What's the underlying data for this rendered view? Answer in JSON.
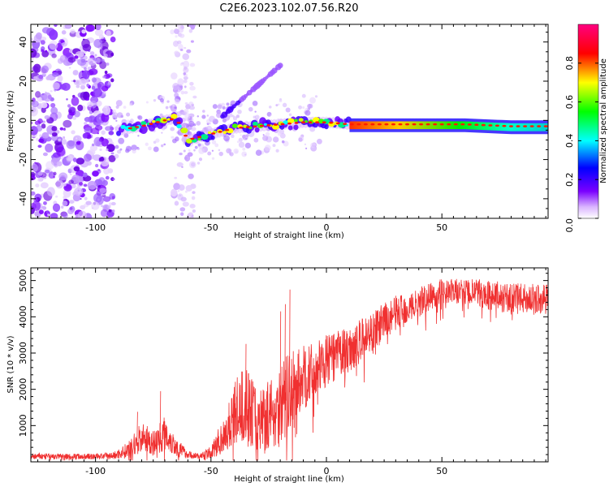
{
  "title": "C2E6.2023.102.07.56.R20",
  "chart_data": [
    {
      "type": "heatmap",
      "xlabel": "Height of straight line (km)",
      "ylabel": "Frequency (Hz)",
      "xlim": [
        -128,
        96
      ],
      "ylim": [
        -50,
        49
      ],
      "xticks": [
        -100,
        -50,
        0,
        50
      ],
      "yticks": [
        -40,
        -20,
        0,
        20,
        40
      ],
      "colorbar": {
        "label": "Normalized spectral amplitude",
        "range": [
          0,
          1
        ],
        "ticks": [
          0.0,
          0.2,
          0.4,
          0.6,
          0.8
        ],
        "tick_labels": [
          "0.0",
          "0.2",
          "0.4",
          "0.6",
          "0.8"
        ],
        "colormap": [
          "#ffffff",
          "#7a00ff",
          "#0000ff",
          "#00ffff",
          "#00ff00",
          "#ffff00",
          "#ff0000",
          "#ff0080"
        ]
      },
      "ridge_line": {
        "x": [
          -100,
          -90,
          -80,
          -70,
          -65,
          -60,
          -50,
          -40,
          -30,
          -20,
          -10,
          0,
          10,
          20,
          40,
          60,
          80,
          96
        ],
        "y": [
          -6,
          -5,
          -3,
          0,
          1,
          -10,
          -7,
          -4,
          -3,
          -2,
          -1,
          -1,
          -2,
          -2,
          -2,
          -2,
          -3,
          -3
        ]
      },
      "noise_bands_x": [
        [
          -128,
          -92
        ],
        [
          -67,
          -57
        ]
      ],
      "branch_line": {
        "x": [
          -45,
          -20
        ],
        "y": [
          2,
          28
        ]
      },
      "grid": false
    },
    {
      "type": "line",
      "xlabel": "Height of straight line (km)",
      "ylabel": "SNR (10 * v/v)",
      "xlim": [
        -128,
        96
      ],
      "ylim": [
        0,
        5350
      ],
      "xticks": [
        -100,
        -50,
        0,
        50
      ],
      "yticks": [
        1000,
        2000,
        3000,
        4000,
        5000
      ],
      "color": "#f03030",
      "envelope": {
        "x": [
          -128,
          -100,
          -92,
          -85,
          -80,
          -75,
          -70,
          -65,
          -60,
          -55,
          -50,
          -45,
          -40,
          -35,
          -30,
          -25,
          -20,
          -15,
          -10,
          -5,
          0,
          10,
          20,
          30,
          40,
          50,
          60,
          70,
          80,
          96
        ],
        "mean": [
          150,
          150,
          170,
          350,
          700,
          500,
          800,
          400,
          200,
          150,
          250,
          700,
          1300,
          1600,
          1200,
          1300,
          1600,
          2000,
          2300,
          2500,
          2800,
          3100,
          3600,
          4100,
          4400,
          4700,
          4700,
          4600,
          4500,
          4500
        ],
        "spread": [
          120,
          120,
          150,
          350,
          600,
          500,
          700,
          400,
          150,
          120,
          250,
          700,
          1300,
          1500,
          1300,
          1400,
          1700,
          1500,
          1300,
          1100,
          1000,
          900,
          800,
          700,
          600,
          500,
          500,
          600,
          600,
          600
        ]
      },
      "grid": false
    }
  ]
}
